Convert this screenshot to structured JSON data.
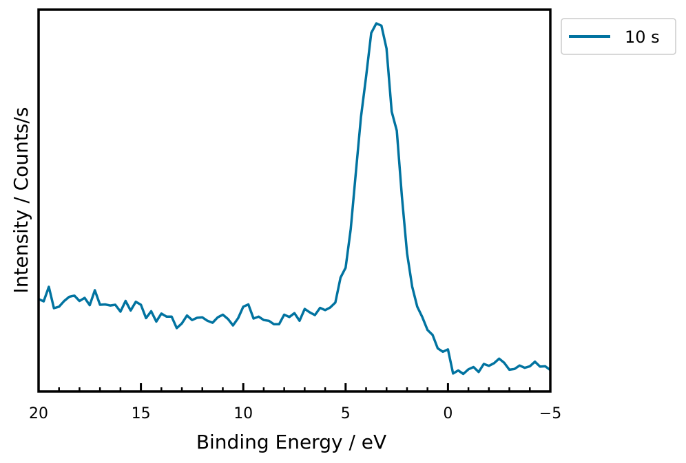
{
  "chart_data": {
    "type": "line",
    "xlabel": "Binding Energy / eV",
    "ylabel": "Intensity / Counts/s",
    "xlim": [
      20,
      -5
    ],
    "ylim": [
      0,
      100
    ],
    "x_ticks": [
      "20",
      "15",
      "10",
      "5",
      "0",
      "−5"
    ],
    "x_tick_values": [
      20,
      15,
      10,
      5,
      0,
      -5
    ],
    "x_minor_step": 1,
    "y_ticks_shown": false,
    "grid": false,
    "legend_position": "outside-top-right",
    "line_color": "#0173a0",
    "series": [
      {
        "name": "10 s",
        "x": [
          20.0,
          19.75,
          19.5,
          19.25,
          19.0,
          18.75,
          18.5,
          18.25,
          18.0,
          17.75,
          17.5,
          17.25,
          17.0,
          16.75,
          16.5,
          16.25,
          16.0,
          15.75,
          15.5,
          15.25,
          15.0,
          14.75,
          14.5,
          14.25,
          14.0,
          13.75,
          13.5,
          13.25,
          13.0,
          12.75,
          12.5,
          12.25,
          12.0,
          11.75,
          11.5,
          11.25,
          11.0,
          10.75,
          10.5,
          10.25,
          10.0,
          9.75,
          9.5,
          9.25,
          9.0,
          8.75,
          8.5,
          8.25,
          8.0,
          7.75,
          7.5,
          7.25,
          7.0,
          6.75,
          6.5,
          6.25,
          6.0,
          5.75,
          5.5,
          5.25,
          5.0,
          4.75,
          4.5,
          4.25,
          4.0,
          3.75,
          3.5,
          3.25,
          3.0,
          2.75,
          2.5,
          2.25,
          2.0,
          1.75,
          1.5,
          1.25,
          1.0,
          0.75,
          0.5,
          0.25,
          0.0,
          -0.25,
          -0.5,
          -0.75,
          -1.0,
          -1.25,
          -1.5,
          -1.75,
          -2.0,
          -2.25,
          -2.5,
          -2.75,
          -3.0,
          -3.25,
          -3.5,
          -3.75,
          -4.0,
          -4.25,
          -4.5,
          -4.75,
          -5.0
        ],
        "y": [
          24.2,
          23.6,
          27.4,
          21.8,
          22.2,
          23.7,
          24.8,
          25.1,
          23.7,
          24.5,
          22.6,
          26.5,
          22.7,
          22.8,
          22.5,
          22.7,
          20.9,
          23.7,
          21.2,
          23.5,
          22.7,
          19.2,
          21.0,
          18.3,
          20.4,
          19.6,
          19.6,
          16.6,
          17.8,
          19.9,
          18.7,
          19.3,
          19.4,
          18.5,
          18.0,
          19.4,
          20.1,
          19.0,
          17.3,
          19.2,
          22.2,
          22.8,
          19.1,
          19.6,
          18.7,
          18.5,
          17.6,
          17.6,
          20.1,
          19.5,
          20.5,
          18.5,
          21.6,
          20.7,
          20.0,
          21.9,
          21.3,
          22.0,
          23.3,
          29.8,
          32.4,
          42.5,
          57.4,
          71.9,
          82.4,
          93.9,
          96.4,
          95.8,
          89.8,
          73.3,
          68.3,
          51.1,
          36.2,
          27.5,
          22.2,
          19.4,
          16.1,
          14.8,
          11.3,
          10.4,
          11.0,
          4.7,
          5.5,
          4.6,
          5.8,
          6.4,
          5.1,
          7.2,
          6.7,
          7.4,
          8.6,
          7.5,
          5.7,
          5.9,
          6.8,
          6.2,
          6.6,
          7.8,
          6.5,
          6.6,
          5.6
        ]
      }
    ]
  }
}
